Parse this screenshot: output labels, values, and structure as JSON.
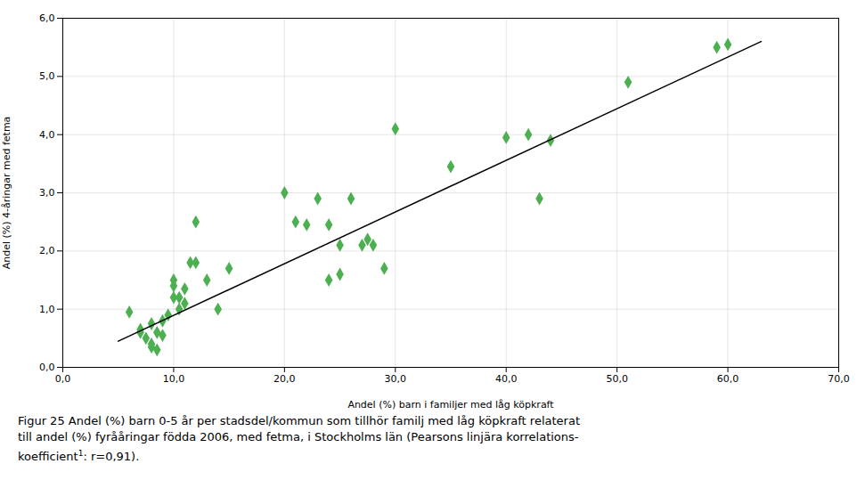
{
  "chart_data": {
    "type": "scatter",
    "xlabel": "Andel (%) barn i familjer med låg köpkraft",
    "ylabel": "Andel (%) 4-åringar med fetma",
    "xlim": [
      0,
      70
    ],
    "ylim": [
      0,
      6.0
    ],
    "xticks": [
      {
        "value": 0,
        "label": "0,0"
      },
      {
        "value": 10,
        "label": "10,0"
      },
      {
        "value": 20,
        "label": "20,0"
      },
      {
        "value": 30,
        "label": "30,0"
      },
      {
        "value": 40,
        "label": "40,0"
      },
      {
        "value": 50,
        "label": "50,0"
      },
      {
        "value": 60,
        "label": "60,0"
      },
      {
        "value": 70,
        "label": "70,0"
      }
    ],
    "yticks": [
      {
        "value": 0,
        "label": "0,0"
      },
      {
        "value": 1,
        "label": "1,0"
      },
      {
        "value": 2,
        "label": "2,0"
      },
      {
        "value": 3,
        "label": "3,0"
      },
      {
        "value": 4,
        "label": "4,0"
      },
      {
        "value": 5,
        "label": "5,0"
      },
      {
        "value": 6,
        "label": "6,0"
      }
    ],
    "grid": true,
    "series": [
      {
        "type": "scatter",
        "color": "#4CAF50",
        "marker": "diamond",
        "x": [
          6,
          7,
          7,
          7.5,
          8,
          8,
          8,
          8.5,
          8.5,
          9,
          9,
          9.5,
          10,
          10,
          10,
          10.5,
          10.5,
          11,
          11,
          11.5,
          12,
          12,
          13,
          14,
          15,
          20,
          21,
          22,
          23,
          24,
          24,
          25,
          25,
          26,
          27,
          27.5,
          28,
          29,
          30,
          35,
          40,
          42,
          43,
          44,
          51,
          59,
          60
        ],
        "values": [
          0.95,
          0.6,
          0.65,
          0.5,
          0.35,
          0.4,
          0.75,
          0.3,
          0.6,
          0.8,
          0.55,
          0.9,
          1.4,
          1.2,
          1.5,
          1.0,
          1.2,
          1.35,
          1.1,
          1.8,
          1.8,
          2.5,
          1.5,
          1.0,
          1.7,
          3.0,
          2.5,
          2.45,
          2.9,
          2.45,
          1.5,
          2.1,
          1.6,
          2.9,
          2.1,
          2.2,
          2.1,
          1.7,
          4.1,
          3.45,
          3.95,
          4.0,
          2.9,
          3.9,
          4.9,
          5.5,
          5.55
        ]
      },
      {
        "type": "line",
        "color": "#000000",
        "x": [
          5,
          63
        ],
        "values": [
          0.45,
          5.6
        ]
      }
    ],
    "caption": [
      "Figur 25 Andel (%) barn 0-5 år per stadsdel/kommun som tillhör familj med låg köpkraft relaterat",
      "till andel (%) fyrååringar födda 2006, med fetma, i Stockholms län (Pearsons linjära korrelations-",
      [
        "koefficient",
        "1",
        ": r=0,91)."
      ]
    ]
  }
}
